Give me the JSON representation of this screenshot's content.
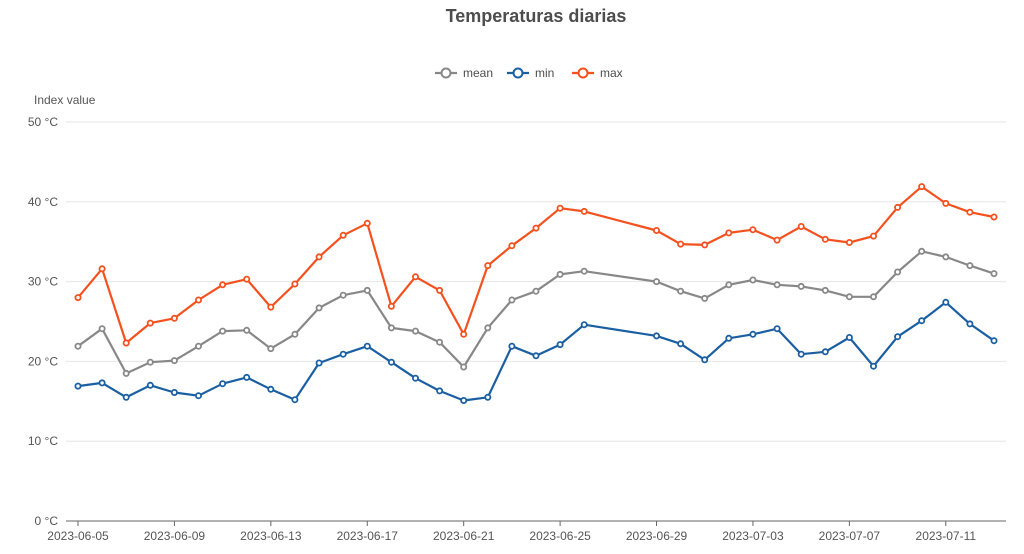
{
  "chart_data": {
    "type": "line",
    "title": "Temperaturas diarias",
    "ylabel": "Index value",
    "y_unit": "°C",
    "ylim": [
      0,
      50
    ],
    "y_ticks": [
      0,
      10,
      20,
      30,
      40,
      50
    ],
    "y_tick_labels": [
      "0 °C",
      "10 °C",
      "20 °C",
      "30 °C",
      "40 °C",
      "50 °C"
    ],
    "x_range": [
      "2023-06-05",
      "2023-07-13"
    ],
    "x_tick_labels": [
      "2023-06-05",
      "2023-06-09",
      "2023-06-13",
      "2023-06-17",
      "2023-06-21",
      "2023-06-25",
      "2023-06-29",
      "2023-07-03",
      "2023-07-07",
      "2023-07-11"
    ],
    "legend_position": "top-center",
    "grid": true,
    "series": [
      {
        "name": "mean",
        "color": "#888888",
        "points": [
          [
            "2023-06-05",
            21.9
          ],
          [
            "2023-06-06",
            24.1
          ],
          [
            "2023-06-07",
            18.5
          ],
          [
            "2023-06-08",
            19.9
          ],
          [
            "2023-06-09",
            20.1
          ],
          [
            "2023-06-10",
            21.9
          ],
          [
            "2023-06-11",
            23.8
          ],
          [
            "2023-06-12",
            23.9
          ],
          [
            "2023-06-13",
            21.6
          ],
          [
            "2023-06-14",
            23.4
          ],
          [
            "2023-06-15",
            26.7
          ],
          [
            "2023-06-16",
            28.3
          ],
          [
            "2023-06-17",
            28.9
          ],
          [
            "2023-06-18",
            24.2
          ],
          [
            "2023-06-19",
            23.8
          ],
          [
            "2023-06-20",
            22.4
          ],
          [
            "2023-06-21",
            19.3
          ],
          [
            "2023-06-22",
            24.2
          ],
          [
            "2023-06-23",
            27.7
          ],
          [
            "2023-06-24",
            28.8
          ],
          [
            "2023-06-25",
            30.9
          ],
          [
            "2023-06-26",
            31.3
          ],
          [
            "2023-06-29",
            30.0
          ],
          [
            "2023-06-30",
            28.8
          ],
          [
            "2023-07-01",
            27.9
          ],
          [
            "2023-07-02",
            29.6
          ],
          [
            "2023-07-03",
            30.2
          ],
          [
            "2023-07-04",
            29.6
          ],
          [
            "2023-07-05",
            29.4
          ],
          [
            "2023-07-06",
            28.9
          ],
          [
            "2023-07-07",
            28.1
          ],
          [
            "2023-07-08",
            28.1
          ],
          [
            "2023-07-09",
            31.2
          ],
          [
            "2023-07-10",
            33.8
          ],
          [
            "2023-07-11",
            33.1
          ],
          [
            "2023-07-12",
            32.0
          ],
          [
            "2023-07-13",
            31.0
          ]
        ]
      },
      {
        "name": "min",
        "color": "#1b5fa3",
        "points": [
          [
            "2023-06-05",
            16.9
          ],
          [
            "2023-06-06",
            17.3
          ],
          [
            "2023-06-07",
            15.5
          ],
          [
            "2023-06-08",
            17.0
          ],
          [
            "2023-06-09",
            16.1
          ],
          [
            "2023-06-10",
            15.7
          ],
          [
            "2023-06-11",
            17.2
          ],
          [
            "2023-06-12",
            18.0
          ],
          [
            "2023-06-13",
            16.5
          ],
          [
            "2023-06-14",
            15.2
          ],
          [
            "2023-06-15",
            19.8
          ],
          [
            "2023-06-16",
            20.9
          ],
          [
            "2023-06-17",
            21.9
          ],
          [
            "2023-06-18",
            19.9
          ],
          [
            "2023-06-19",
            17.9
          ],
          [
            "2023-06-20",
            16.3
          ],
          [
            "2023-06-21",
            15.1
          ],
          [
            "2023-06-22",
            15.5
          ],
          [
            "2023-06-23",
            21.9
          ],
          [
            "2023-06-24",
            20.7
          ],
          [
            "2023-06-25",
            22.1
          ],
          [
            "2023-06-26",
            24.6
          ],
          [
            "2023-06-29",
            23.2
          ],
          [
            "2023-06-30",
            22.2
          ],
          [
            "2023-07-01",
            20.2
          ],
          [
            "2023-07-02",
            22.9
          ],
          [
            "2023-07-03",
            23.4
          ],
          [
            "2023-07-04",
            24.1
          ],
          [
            "2023-07-05",
            20.9
          ],
          [
            "2023-07-06",
            21.2
          ],
          [
            "2023-07-07",
            23.0
          ],
          [
            "2023-07-08",
            19.4
          ],
          [
            "2023-07-09",
            23.1
          ],
          [
            "2023-07-10",
            25.1
          ],
          [
            "2023-07-11",
            27.4
          ],
          [
            "2023-07-12",
            24.7
          ],
          [
            "2023-07-13",
            22.6
          ]
        ]
      },
      {
        "name": "max",
        "color": "#f4511e",
        "points": [
          [
            "2023-06-05",
            28.0
          ],
          [
            "2023-06-06",
            31.6
          ],
          [
            "2023-06-07",
            22.3
          ],
          [
            "2023-06-08",
            24.8
          ],
          [
            "2023-06-09",
            25.4
          ],
          [
            "2023-06-10",
            27.7
          ],
          [
            "2023-06-11",
            29.6
          ],
          [
            "2023-06-12",
            30.3
          ],
          [
            "2023-06-13",
            26.8
          ],
          [
            "2023-06-14",
            29.7
          ],
          [
            "2023-06-15",
            33.1
          ],
          [
            "2023-06-16",
            35.8
          ],
          [
            "2023-06-17",
            37.3
          ],
          [
            "2023-06-18",
            26.9
          ],
          [
            "2023-06-19",
            30.6
          ],
          [
            "2023-06-20",
            28.9
          ],
          [
            "2023-06-21",
            23.4
          ],
          [
            "2023-06-22",
            32.0
          ],
          [
            "2023-06-23",
            34.5
          ],
          [
            "2023-06-24",
            36.7
          ],
          [
            "2023-06-25",
            39.2
          ],
          [
            "2023-06-26",
            38.8
          ],
          [
            "2023-06-29",
            36.4
          ],
          [
            "2023-06-30",
            34.7
          ],
          [
            "2023-07-01",
            34.6
          ],
          [
            "2023-07-02",
            36.1
          ],
          [
            "2023-07-03",
            36.5
          ],
          [
            "2023-07-04",
            35.2
          ],
          [
            "2023-07-05",
            36.9
          ],
          [
            "2023-07-06",
            35.3
          ],
          [
            "2023-07-07",
            34.9
          ],
          [
            "2023-07-08",
            35.7
          ],
          [
            "2023-07-09",
            39.3
          ],
          [
            "2023-07-10",
            41.9
          ],
          [
            "2023-07-11",
            39.8
          ],
          [
            "2023-07-12",
            38.7
          ],
          [
            "2023-07-13",
            38.1
          ]
        ]
      }
    ]
  }
}
